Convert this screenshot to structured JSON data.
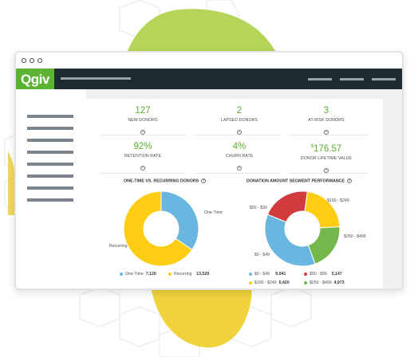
{
  "colors": {
    "brand_green": "#5cb233",
    "appbar": "#1f2b33",
    "blue": "#69b6e0",
    "yellow": "#fdcd13",
    "red": "#d13b3d",
    "green": "#74b74a"
  },
  "app": {
    "logo": "Qgiv"
  },
  "stats": [
    {
      "value": "127",
      "label": "NEW DONORS"
    },
    {
      "value": "2",
      "label": "LAPSED DONORS"
    },
    {
      "value": "3",
      "label": "AT-RISK DONORS"
    },
    {
      "value": "92%",
      "label": "RETENTION RATE"
    },
    {
      "value": "4%",
      "label": "CHURN RATE"
    },
    {
      "currency": "$",
      "value": "176.57",
      "label": "DONOR LIFETIME VALUE"
    }
  ],
  "help_icon": "?",
  "chart_data": [
    {
      "type": "pie",
      "title": "ONE-TIME VS. RECURRING DONORS",
      "categories": [
        "One-Time",
        "Recurring"
      ],
      "values": [
        7120,
        13520
      ],
      "value_labels": [
        "7,120",
        "13,520"
      ],
      "colors": [
        "#69b6e0",
        "#fdcd13"
      ]
    },
    {
      "type": "pie",
      "title": "DONATION AMOUNT SEGMENT PERFORMANCE",
      "categories": [
        "$0 - $49",
        "$50 - $99",
        "$100 - $249",
        "$250 - $499"
      ],
      "values": [
        9041,
        5147,
        5420,
        4973
      ],
      "value_labels": [
        "9,041",
        "5,147",
        "5,420",
        "4,973"
      ],
      "colors": [
        "#69b6e0",
        "#d13b3d",
        "#fdcd13",
        "#74b74a"
      ]
    }
  ]
}
